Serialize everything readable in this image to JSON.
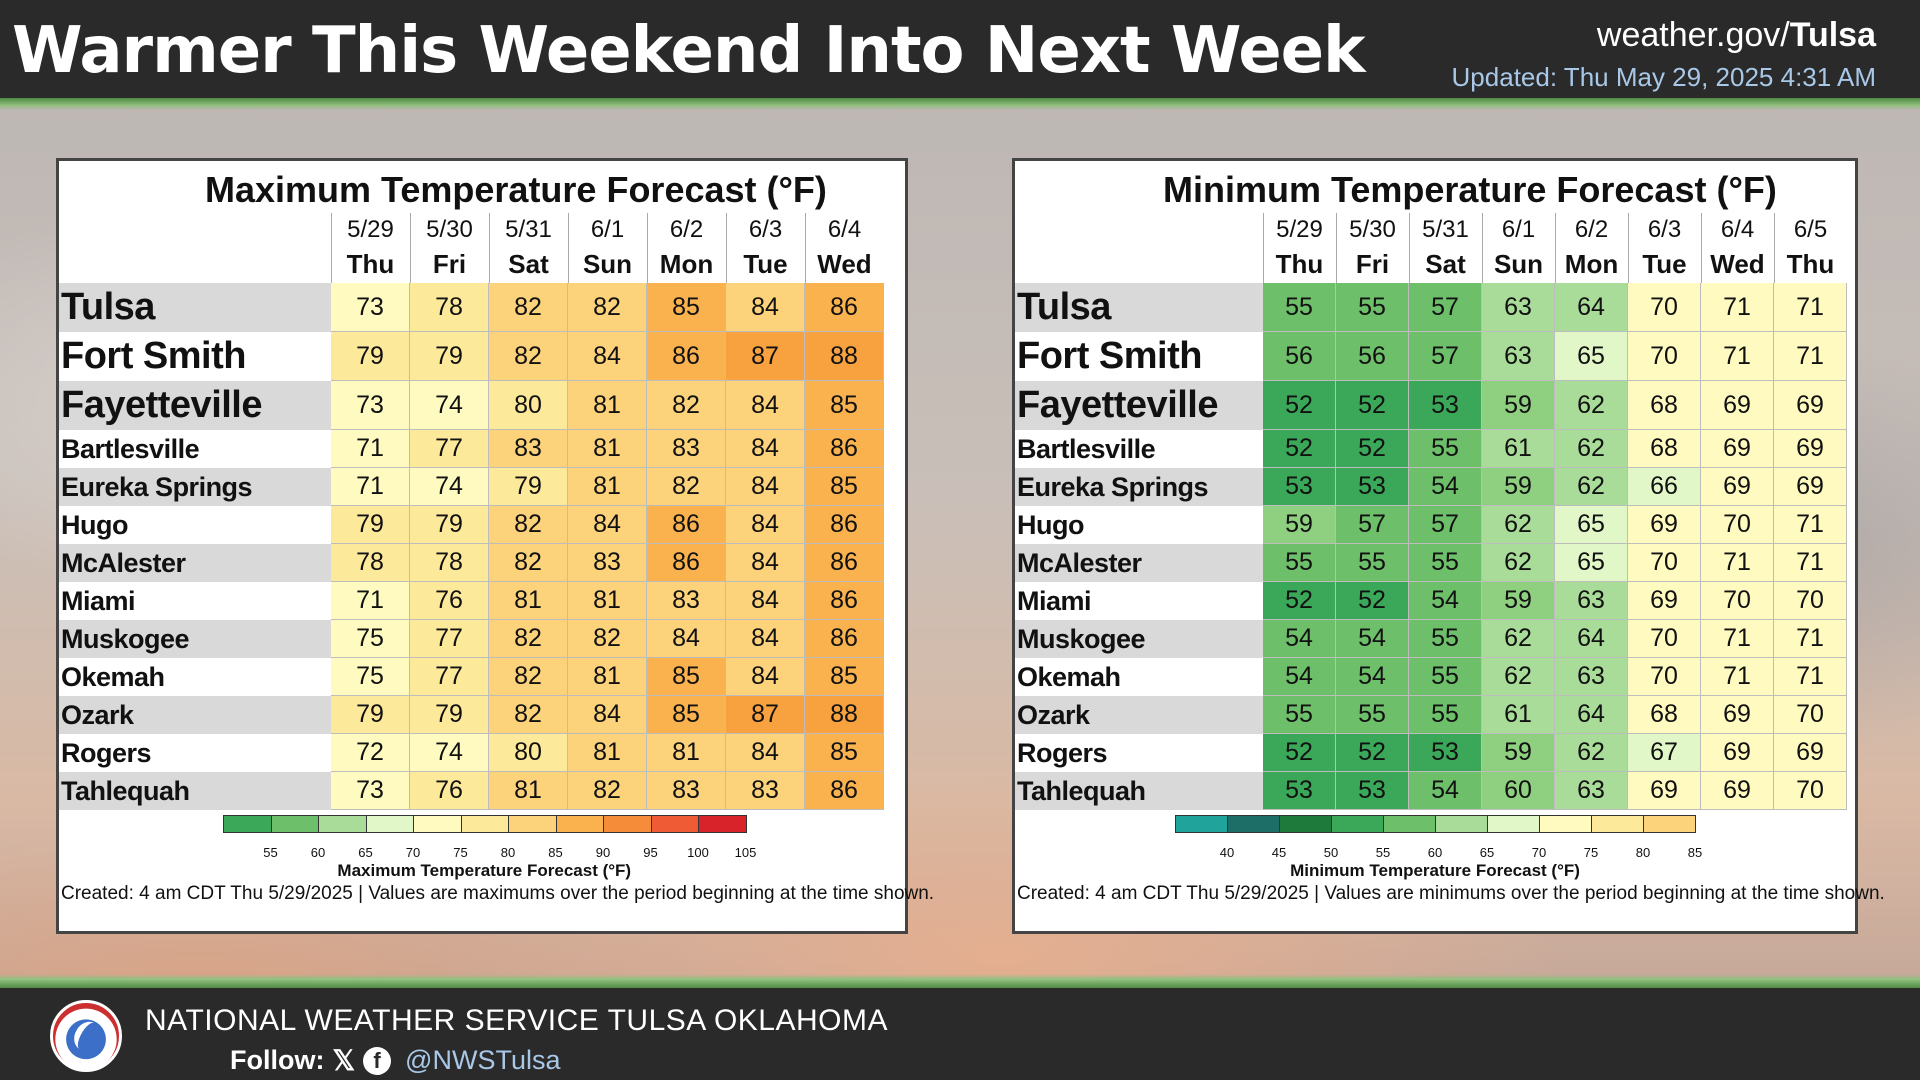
{
  "header": {
    "title": "Warmer This Weekend Into Next Week",
    "site_prefix": "weather.gov/",
    "site_office": "Tulsa",
    "updated": "Updated: Thu May 29, 2025 4:31 AM"
  },
  "footer": {
    "org": "NATIONAL WEATHER SERVICE TULSA OKLAHOMA",
    "follow_label": "Follow:",
    "handle": "@NWSTulsa"
  },
  "max_table": {
    "title": "Maximum Temperature Forecast (°F)",
    "dates": [
      "5/29",
      "5/30",
      "5/31",
      "6/1",
      "6/2",
      "6/3",
      "6/4"
    ],
    "days": [
      "Thu",
      "Fri",
      "Sat",
      "Sun",
      "Mon",
      "Tue",
      "Wed"
    ],
    "rows": [
      {
        "city": "Tulsa",
        "values": [
          73,
          78,
          82,
          82,
          85,
          84,
          86
        ]
      },
      {
        "city": "Fort Smith",
        "values": [
          79,
          79,
          82,
          84,
          86,
          87,
          88
        ]
      },
      {
        "city": "Fayetteville",
        "values": [
          73,
          74,
          80,
          81,
          82,
          84,
          85
        ]
      },
      {
        "city": "Bartlesville",
        "values": [
          71,
          77,
          83,
          81,
          83,
          84,
          86
        ]
      },
      {
        "city": "Eureka Springs",
        "values": [
          71,
          74,
          79,
          81,
          82,
          84,
          85
        ]
      },
      {
        "city": "Hugo",
        "values": [
          79,
          79,
          82,
          84,
          86,
          84,
          86
        ]
      },
      {
        "city": "McAlester",
        "values": [
          78,
          78,
          82,
          83,
          86,
          84,
          86
        ]
      },
      {
        "city": "Miami",
        "values": [
          71,
          76,
          81,
          81,
          83,
          84,
          86
        ]
      },
      {
        "city": "Muskogee",
        "values": [
          75,
          77,
          82,
          82,
          84,
          84,
          86
        ]
      },
      {
        "city": "Okemah",
        "values": [
          75,
          77,
          82,
          81,
          85,
          84,
          85
        ]
      },
      {
        "city": "Ozark",
        "values": [
          79,
          79,
          82,
          84,
          85,
          87,
          88
        ]
      },
      {
        "city": "Rogers",
        "values": [
          72,
          74,
          80,
          81,
          81,
          84,
          85
        ]
      },
      {
        "city": "Tahlequah",
        "values": [
          73,
          76,
          81,
          82,
          83,
          83,
          86
        ]
      }
    ],
    "legend": {
      "ticks": [
        "55",
        "60",
        "65",
        "70",
        "75",
        "80",
        "85",
        "90",
        "95",
        "100",
        "105"
      ],
      "colors": [
        "#3aa858",
        "#6dbf6a",
        "#a8dc98",
        "#e2f7c8",
        "#fffbc0",
        "#fde99a",
        "#fcd27a",
        "#f9b24e",
        "#f58c3a",
        "#ee5b34",
        "#d9232a"
      ],
      "title": "Maximum Temperature Forecast (°F)"
    },
    "note": "Created: 4 am CDT Thu 5/29/2025  |  Values are maximums over the period beginning at the time shown."
  },
  "min_table": {
    "title": "Minimum Temperature Forecast (°F)",
    "dates": [
      "5/29",
      "5/30",
      "5/31",
      "6/1",
      "6/2",
      "6/3",
      "6/4",
      "6/5"
    ],
    "days": [
      "Thu",
      "Fri",
      "Sat",
      "Sun",
      "Mon",
      "Tue",
      "Wed",
      "Thu"
    ],
    "rows": [
      {
        "city": "Tulsa",
        "values": [
          55,
          55,
          57,
          63,
          64,
          70,
          71,
          71
        ]
      },
      {
        "city": "Fort Smith",
        "values": [
          56,
          56,
          57,
          63,
          65,
          70,
          71,
          71
        ]
      },
      {
        "city": "Fayetteville",
        "values": [
          52,
          52,
          53,
          59,
          62,
          68,
          69,
          69
        ]
      },
      {
        "city": "Bartlesville",
        "values": [
          52,
          52,
          55,
          61,
          62,
          68,
          69,
          69
        ]
      },
      {
        "city": "Eureka Springs",
        "values": [
          53,
          53,
          54,
          59,
          62,
          66,
          69,
          69
        ]
      },
      {
        "city": "Hugo",
        "values": [
          59,
          57,
          57,
          62,
          65,
          69,
          70,
          71
        ]
      },
      {
        "city": "McAlester",
        "values": [
          55,
          55,
          55,
          62,
          65,
          70,
          71,
          71
        ]
      },
      {
        "city": "Miami",
        "values": [
          52,
          52,
          54,
          59,
          63,
          69,
          70,
          70
        ]
      },
      {
        "city": "Muskogee",
        "values": [
          54,
          54,
          55,
          62,
          64,
          70,
          71,
          71
        ]
      },
      {
        "city": "Okemah",
        "values": [
          54,
          54,
          55,
          62,
          63,
          70,
          71,
          71
        ]
      },
      {
        "city": "Ozark",
        "values": [
          55,
          55,
          55,
          61,
          64,
          68,
          69,
          70
        ]
      },
      {
        "city": "Rogers",
        "values": [
          52,
          52,
          53,
          59,
          62,
          67,
          69,
          69
        ]
      },
      {
        "city": "Tahlequah",
        "values": [
          53,
          53,
          54,
          60,
          63,
          69,
          69,
          70
        ]
      }
    ],
    "legend": {
      "ticks": [
        "40",
        "45",
        "50",
        "55",
        "60",
        "65",
        "70",
        "75",
        "80",
        "85"
      ],
      "colors": [
        "#1fa39a",
        "#1c6e66",
        "#1e7a3a",
        "#3aa858",
        "#6dbf6a",
        "#a8dc98",
        "#e2f7c8",
        "#fffbc0",
        "#fde99a",
        "#fcd27a"
      ],
      "title": "Minimum Temperature Forecast (°F)"
    },
    "note": "Created: 4 am CDT Thu 5/29/2025  |  Values are minimums over the period beginning at the time shown."
  }
}
